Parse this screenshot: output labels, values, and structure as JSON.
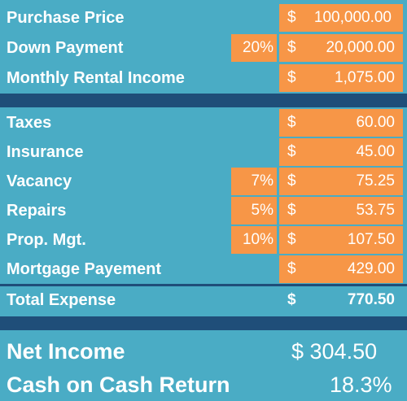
{
  "colors": {
    "teal": "#4aacc5",
    "orange": "#f79647",
    "navy": "#1f4e79"
  },
  "rows": [
    {
      "label": "Purchase Price",
      "pct": "",
      "cur": "$",
      "amount": "100,000.00"
    },
    {
      "label": "Down Payment",
      "pct": "20%",
      "cur": "$",
      "amount": "20,000.00"
    },
    {
      "label": "Monthly Rental Income",
      "pct": "",
      "cur": "$",
      "amount": "1,075.00"
    },
    {
      "label": "Taxes",
      "pct": "",
      "cur": "$",
      "amount": "60.00"
    },
    {
      "label": "Insurance",
      "pct": "",
      "cur": "$",
      "amount": "45.00"
    },
    {
      "label": "Vacancy",
      "pct": "7%",
      "cur": "$",
      "amount": "75.25"
    },
    {
      "label": "Repairs",
      "pct": "5%",
      "cur": "$",
      "amount": "53.75"
    },
    {
      "label": "Prop. Mgt.",
      "pct": "10%",
      "cur": "$",
      "amount": "107.50"
    },
    {
      "label": "Mortgage Payement",
      "pct": "",
      "cur": "$",
      "amount": "429.00"
    }
  ],
  "total": {
    "label": "Total Expense",
    "cur": "$",
    "amount": "770.50"
  },
  "net_income": {
    "label": "Net Income",
    "value": "$ 304.50"
  },
  "cash_return": {
    "label": "Cash on Cash Return",
    "value": "18.3%"
  }
}
